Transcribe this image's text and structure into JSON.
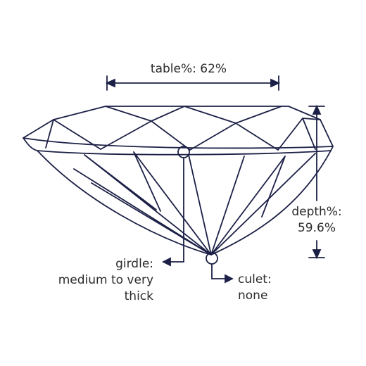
{
  "colors": {
    "line": "#1c2046",
    "text": "#2b2b2b",
    "background": "#ffffff"
  },
  "labels": {
    "table": "table%: 62%",
    "depth_title": "depth%:",
    "depth_value": "59.6%",
    "girdle_title": "girdle:",
    "girdle_line1": "medium to very",
    "girdle_line2": "thick",
    "culet_title": "culet:",
    "culet_value": "none"
  }
}
